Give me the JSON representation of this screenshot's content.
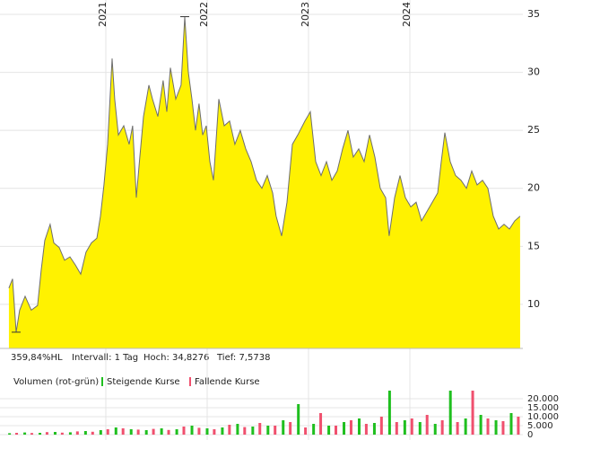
{
  "chart_data": [
    {
      "type": "area",
      "color": "#fff200",
      "line_color": "#6e6e6e",
      "x": [
        2020.044,
        2020.08,
        2020.115,
        2020.15,
        2020.204,
        2020.265,
        2020.327,
        2020.363,
        2020.398,
        2020.451,
        2020.487,
        2020.54,
        2020.593,
        2020.646,
        2020.699,
        2020.752,
        2020.805,
        2020.858,
        2020.912,
        2020.947,
        2020.982,
        2021.018,
        2021.062,
        2021.088,
        2021.124,
        2021.177,
        2021.23,
        2021.265,
        2021.301,
        2021.336,
        2021.372,
        2021.425,
        2021.46,
        2021.513,
        2021.566,
        2021.602,
        2021.637,
        2021.69,
        2021.743,
        2021.779,
        2021.814,
        2021.85,
        2021.885,
        2021.92,
        2021.956,
        2021.991,
        2022.027,
        2022.062,
        2022.115,
        2022.168,
        2022.221,
        2022.274,
        2022.327,
        2022.381,
        2022.434,
        2022.487,
        2022.54,
        2022.593,
        2022.646,
        2022.681,
        2022.735,
        2022.788,
        2022.841,
        2022.894,
        2022.965,
        2023.018,
        2023.071,
        2023.124,
        2023.177,
        2023.23,
        2023.283,
        2023.336,
        2023.389,
        2023.442,
        2023.496,
        2023.549,
        2023.602,
        2023.655,
        2023.708,
        2023.761,
        2023.796,
        2023.85,
        2023.903,
        2023.956,
        2024.009,
        2024.062,
        2024.115,
        2024.168,
        2024.221,
        2024.274,
        2024.31,
        2024.345,
        2024.398,
        2024.451,
        2024.504,
        2024.558,
        2024.611,
        2024.664,
        2024.717,
        2024.77,
        2024.823,
        2024.876,
        2024.929,
        2024.982,
        2025.035,
        2025.088
      ],
      "values": [
        11.4,
        12.2,
        7.6,
        9.5,
        10.7,
        9.5,
        9.9,
        13.0,
        15.5,
        16.9,
        15.3,
        14.9,
        13.8,
        14.1,
        13.4,
        12.6,
        14.5,
        15.3,
        15.7,
        17.6,
        20.3,
        23.8,
        31.2,
        27.7,
        24.6,
        25.4,
        23.8,
        25.4,
        19.2,
        22.7,
        26.2,
        28.9,
        27.7,
        26.2,
        29.3,
        26.6,
        30.4,
        27.7,
        28.9,
        34.8,
        30.0,
        27.7,
        25.0,
        27.3,
        24.6,
        25.4,
        22.3,
        20.7,
        27.7,
        25.4,
        25.8,
        23.8,
        25.0,
        23.4,
        22.3,
        20.7,
        20.0,
        21.1,
        19.6,
        17.6,
        15.9,
        18.8,
        23.8,
        24.6,
        25.8,
        26.6,
        22.3,
        21.1,
        22.3,
        20.7,
        21.5,
        23.4,
        25.0,
        22.7,
        23.4,
        22.3,
        24.6,
        22.7,
        20.0,
        19.2,
        15.9,
        19.2,
        21.1,
        19.2,
        18.4,
        18.8,
        17.2,
        18.0,
        18.8,
        19.6,
        22.3,
        24.8,
        22.3,
        21.1,
        20.7,
        20.0,
        21.5,
        20.3,
        20.7,
        20.0,
        17.6,
        16.5,
        16.9,
        16.5,
        17.2,
        17.6
      ],
      "xlim": [
        2019.956,
        2025.115
      ],
      "xticks": [
        2021,
        2022,
        2023,
        2024
      ],
      "ylim": [
        6.2,
        35.85
      ],
      "yticks": [
        10,
        15,
        20,
        25,
        30,
        35
      ],
      "grid": true
    },
    {
      "type": "bar",
      "title": "Volumen (rot-grün)",
      "xlim": [
        2019.956,
        2025.115
      ],
      "xticks": [
        2021,
        2022,
        2023,
        2024
      ],
      "ylim": [
        0,
        24500
      ],
      "yticks": [
        0,
        {
          "value": 5000,
          "label": "5.000"
        },
        {
          "value": 10000,
          "label": "10.000"
        },
        {
          "value": 15000,
          "label": "15.000"
        },
        {
          "value": 20000,
          "label": "20.000"
        }
      ],
      "series": [
        {
          "name": "Steigende Kurse",
          "color": "#1fbf1f",
          "x": [
            2020.05,
            2020.2,
            2020.35,
            2020.5,
            2020.65,
            2020.8,
            2020.95,
            2021.1,
            2021.25,
            2021.4,
            2021.55,
            2021.7,
            2021.85,
            2022.0,
            2022.15,
            2022.3,
            2022.45,
            2022.6,
            2022.75,
            2022.9,
            2023.05,
            2023.2,
            2023.35,
            2023.5,
            2023.65,
            2023.8,
            2023.95,
            2024.1,
            2024.25,
            2024.4,
            2024.55,
            2024.7,
            2024.85,
            2025.0
          ],
          "values": [
            800,
            1200,
            1000,
            1500,
            1300,
            2000,
            2500,
            4000,
            3000,
            2500,
            3500,
            3000,
            5000,
            3500,
            4000,
            6000,
            4500,
            5000,
            8000,
            17000,
            6000,
            5000,
            7000,
            9000,
            6500,
            24500,
            8000,
            7000,
            6000,
            24500,
            9000,
            11000,
            8000,
            12000
          ]
        },
        {
          "name": "Fallende Kurse",
          "color": "#f0506e",
          "x": [
            2020.12,
            2020.27,
            2020.42,
            2020.57,
            2020.72,
            2020.87,
            2021.02,
            2021.17,
            2021.32,
            2021.47,
            2021.62,
            2021.77,
            2021.92,
            2022.07,
            2022.22,
            2022.37,
            2022.52,
            2022.67,
            2022.82,
            2022.97,
            2023.12,
            2023.27,
            2023.42,
            2023.57,
            2023.72,
            2023.87,
            2024.02,
            2024.17,
            2024.32,
            2024.47,
            2024.62,
            2024.77,
            2024.92,
            2025.07
          ],
          "values": [
            1000,
            900,
            1400,
            1100,
            1800,
            1600,
            3000,
            3500,
            2800,
            3200,
            2600,
            4500,
            3800,
            3000,
            5500,
            4200,
            6500,
            5000,
            7000,
            4000,
            12000,
            5000,
            8000,
            6000,
            10000,
            7000,
            9000,
            11000,
            8000,
            7000,
            24500,
            9000,
            7500,
            10000
          ]
        }
      ]
    }
  ],
  "info": [
    "359,84%HL",
    "Intervall: 1 Tag",
    "Hoch: 34,8276",
    "Tief: 7,5738"
  ]
}
